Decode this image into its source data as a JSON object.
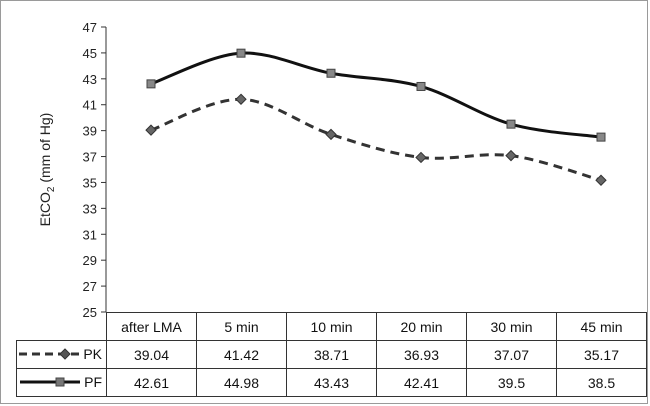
{
  "chart_data": {
    "type": "line",
    "title": "",
    "xlabel": "",
    "ylabel": "EtCO",
    "ylabel_subscript": "2",
    "ylabel_suffix": " (mm of Hg)",
    "ylim": [
      25,
      47
    ],
    "yticks": [
      25,
      27,
      29,
      31,
      33,
      35,
      37,
      39,
      41,
      43,
      45,
      47
    ],
    "grid": false,
    "legend": "data-table",
    "categories": [
      "after LMA",
      "5 min",
      "10 min",
      "20 min",
      "30 min",
      "45 min"
    ],
    "series": [
      {
        "name": "PK",
        "values": [
          39.04,
          41.42,
          38.71,
          36.93,
          37.07,
          35.17
        ],
        "display": [
          "39.04",
          "41.42",
          "38.71",
          "36.93",
          "37.07",
          "35.17"
        ],
        "line": "dashed",
        "marker": "diamond",
        "color": "#333333"
      },
      {
        "name": "PF",
        "values": [
          42.61,
          44.98,
          43.43,
          42.41,
          39.5,
          38.5
        ],
        "display": [
          "42.61",
          "44.98",
          "43.43",
          "42.41",
          "39.5",
          "38.5"
        ],
        "line": "solid",
        "marker": "square",
        "color": "#111111"
      }
    ]
  }
}
